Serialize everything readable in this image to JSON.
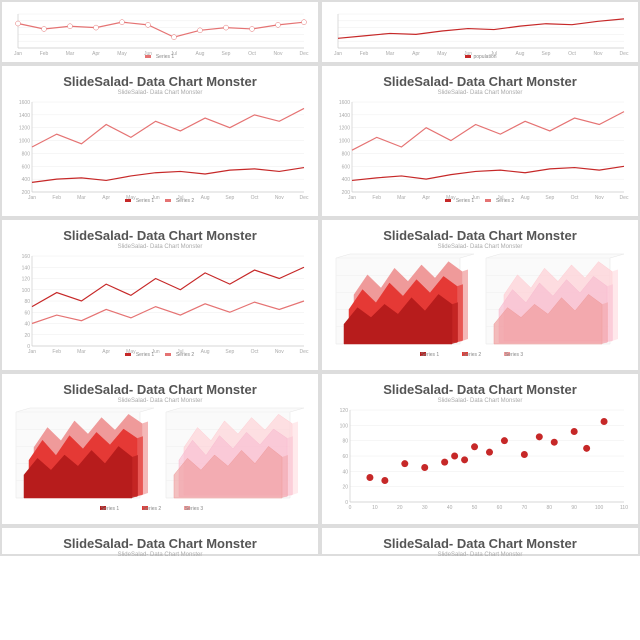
{
  "common_title": "SlideSalad- Data Chart Monster",
  "common_subtitle": "SlideSalad- Data Chart Monster",
  "months": [
    "Jan",
    "Feb",
    "Mar",
    "Apr",
    "May",
    "Jun",
    "Jul",
    "Aug",
    "Sep",
    "Oct",
    "Nov",
    "Dec"
  ],
  "colors": {
    "series1": "#c62828",
    "series2": "#e57373",
    "series3": "#ef9a9a",
    "series4": "#ffcdd2",
    "grid": "#eeeeee",
    "axis": "#cccccc",
    "text": "#aaaaaa",
    "title": "#555555",
    "bg": "#ffffff",
    "panel_border": "#dddddd"
  },
  "top_left": {
    "type": "line-with-markers",
    "series": [
      18,
      14,
      16,
      15,
      19,
      17,
      8,
      13,
      15,
      14,
      17,
      19
    ],
    "ymin": 0,
    "ymax": 25,
    "marker_color": "#e57373",
    "line_color": "#e57373",
    "legend_label": "Series 1"
  },
  "top_right": {
    "type": "line",
    "series": [
      120,
      125,
      130,
      128,
      135,
      140,
      138,
      145,
      150,
      148,
      155,
      160
    ],
    "ymin": 100,
    "ymax": 170,
    "line_color": "#c62828",
    "legend_label": "population"
  },
  "r2_left": {
    "type": "multi-line",
    "ymin": 200,
    "ymax": 1600,
    "ytick_step": 200,
    "series": [
      {
        "label": "Series 1",
        "color": "#c62828",
        "values": [
          350,
          400,
          420,
          380,
          450,
          500,
          520,
          480,
          540,
          560,
          520,
          580
        ]
      },
      {
        "label": "Series 2",
        "color": "#e57373",
        "values": [
          900,
          1100,
          950,
          1250,
          1050,
          1300,
          1150,
          1350,
          1200,
          1400,
          1300,
          1500
        ]
      }
    ]
  },
  "r2_right": {
    "type": "multi-line",
    "ymin": 200,
    "ymax": 1600,
    "ytick_step": 200,
    "series": [
      {
        "label": "Series 1",
        "color": "#c62828",
        "values": [
          380,
          420,
          450,
          400,
          470,
          520,
          540,
          500,
          560,
          580,
          540,
          600
        ]
      },
      {
        "label": "Series 2",
        "color": "#e57373",
        "values": [
          850,
          1050,
          900,
          1200,
          1000,
          1250,
          1100,
          1300,
          1150,
          1350,
          1250,
          1450
        ]
      }
    ]
  },
  "r3_left": {
    "type": "multi-line",
    "ymin": 0,
    "ymax": 160,
    "ytick_step": 20,
    "series": [
      {
        "label": "Series 1",
        "color": "#c62828",
        "values": [
          70,
          95,
          80,
          110,
          90,
          120,
          100,
          130,
          110,
          135,
          120,
          140
        ]
      },
      {
        "label": "Series 2",
        "color": "#e57373",
        "values": [
          40,
          55,
          45,
          65,
          50,
          70,
          55,
          75,
          60,
          78,
          65,
          80
        ]
      }
    ]
  },
  "r3_right": {
    "type": "area-3d-pair",
    "legend_labels": [
      "Series 1",
      "Series 2",
      "Series 3"
    ],
    "panels": [
      {
        "colors": [
          "#b71c1c",
          "#e53935",
          "#ef9a9a"
        ],
        "opacity": 1.0,
        "values": [
          [
            30,
            55,
            40,
            60,
            45,
            70,
            50,
            75,
            60
          ],
          [
            50,
            80,
            60,
            90,
            70,
            95,
            75,
            100,
            85
          ],
          [
            70,
            100,
            80,
            110,
            90,
            115,
            95,
            120,
            105
          ]
        ]
      },
      {
        "colors": [
          "#ef9a9a",
          "#f8bbd0",
          "#ffcdd2"
        ],
        "opacity": 0.65,
        "values": [
          [
            30,
            55,
            40,
            60,
            45,
            70,
            50,
            75,
            60
          ],
          [
            50,
            80,
            60,
            90,
            70,
            95,
            75,
            100,
            85
          ],
          [
            70,
            100,
            80,
            110,
            90,
            115,
            95,
            120,
            105
          ]
        ]
      }
    ],
    "ymax": 130
  },
  "r4_left": {
    "type": "area-3d-pair",
    "legend_labels": [
      "Series 1",
      "Series 2",
      "Series 3"
    ],
    "panels": [
      {
        "colors": [
          "#b71c1c",
          "#e53935",
          "#ef9a9a"
        ],
        "opacity": 1.0,
        "values": [
          [
            35,
            60,
            42,
            65,
            48,
            72,
            52,
            78,
            62
          ],
          [
            55,
            85,
            62,
            92,
            72,
            97,
            78,
            102,
            88
          ],
          [
            72,
            102,
            82,
            112,
            92,
            117,
            98,
            122,
            108
          ]
        ]
      },
      {
        "colors": [
          "#ef9a9a",
          "#f8bbd0",
          "#ffcdd2"
        ],
        "opacity": 0.6,
        "values": [
          [
            35,
            60,
            42,
            65,
            48,
            72,
            52,
            78,
            62
          ],
          [
            55,
            85,
            62,
            92,
            72,
            97,
            78,
            102,
            88
          ],
          [
            72,
            102,
            82,
            112,
            92,
            117,
            98,
            122,
            108
          ]
        ]
      }
    ],
    "ymax": 130
  },
  "r4_right": {
    "type": "scatter",
    "xmin": 0,
    "xmax": 110,
    "xtick_step": 10,
    "ymin": 0,
    "ymax": 120,
    "ytick_step": 20,
    "point_color": "#c62828",
    "point_radius": 3.5,
    "points": [
      [
        8,
        32
      ],
      [
        14,
        28
      ],
      [
        22,
        50
      ],
      [
        30,
        45
      ],
      [
        38,
        52
      ],
      [
        42,
        60
      ],
      [
        46,
        55
      ],
      [
        50,
        72
      ],
      [
        56,
        65
      ],
      [
        62,
        80
      ],
      [
        70,
        62
      ],
      [
        76,
        85
      ],
      [
        82,
        78
      ],
      [
        90,
        92
      ],
      [
        95,
        70
      ],
      [
        102,
        105
      ]
    ]
  },
  "r5_left": {
    "title_only": true
  },
  "r5_right": {
    "title_only": true,
    "red_bar": true
  }
}
